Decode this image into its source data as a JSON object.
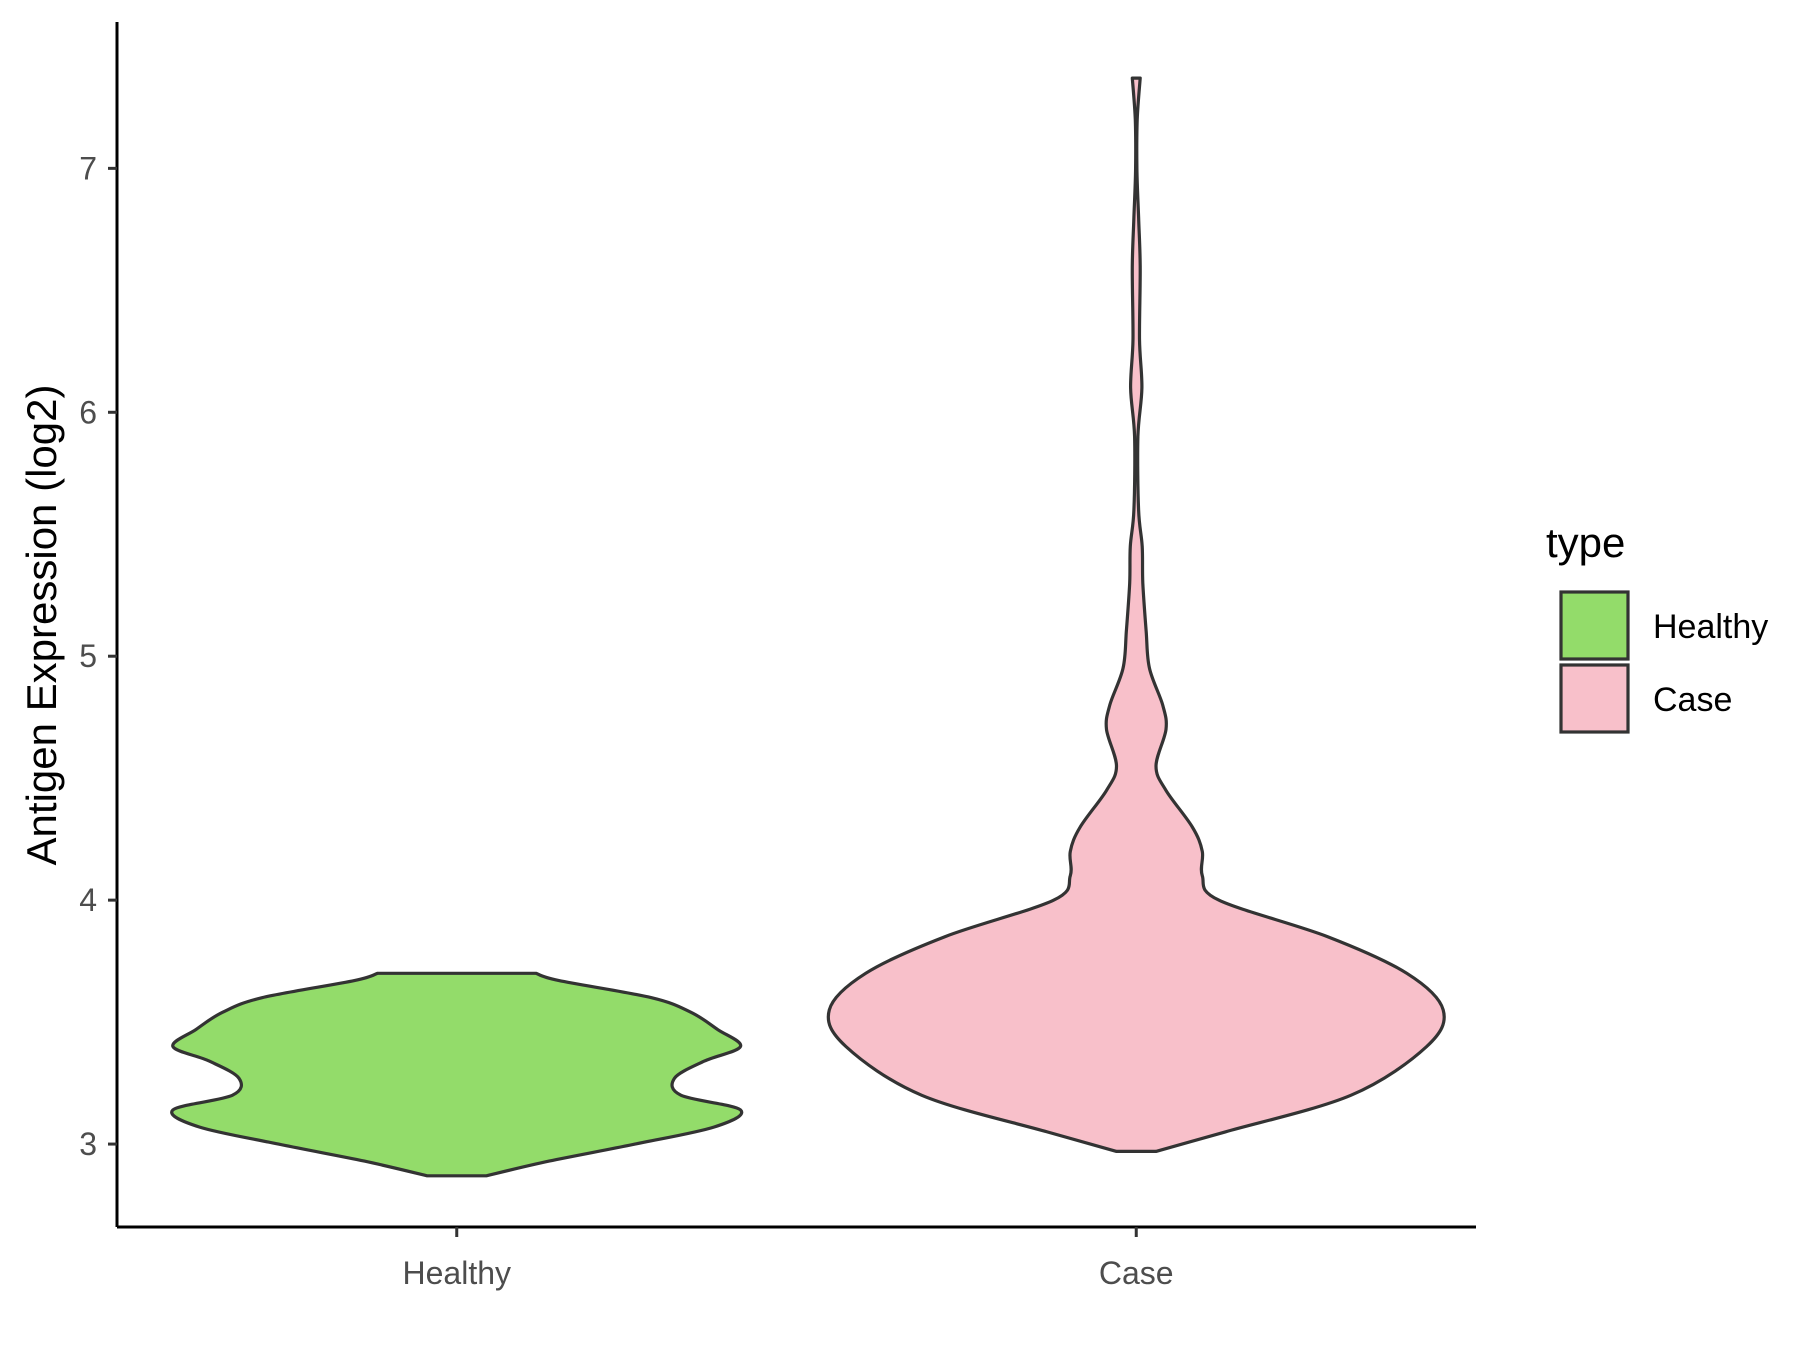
{
  "chart_data": {
    "type": "violin",
    "xlabel": "",
    "ylabel": "Antigen Expression (log2)",
    "categories": [
      "Healthy",
      "Case"
    ],
    "ylim": [
      2.66,
      7.6
    ],
    "yticks": [
      3,
      4,
      5,
      6,
      7
    ],
    "grid": false,
    "legend": {
      "title": "type",
      "position": "right",
      "entries": [
        {
          "label": "Healthy",
          "color": "#93dc6a"
        },
        {
          "label": "Case",
          "color": "#f8c0ca"
        }
      ]
    },
    "series": [
      {
        "name": "Healthy",
        "color": "#93dc6a",
        "min": 2.87,
        "max": 3.7,
        "density": [
          [
            2.87,
            0.09
          ],
          [
            2.93,
            0.28
          ],
          [
            3.0,
            0.54
          ],
          [
            3.07,
            0.78
          ],
          [
            3.14,
            0.86
          ],
          [
            3.2,
            0.68
          ],
          [
            3.27,
            0.66
          ],
          [
            3.34,
            0.75
          ],
          [
            3.4,
            0.86
          ],
          [
            3.47,
            0.79
          ],
          [
            3.54,
            0.71
          ],
          [
            3.6,
            0.59
          ],
          [
            3.67,
            0.31
          ],
          [
            3.7,
            0.24
          ]
        ]
      },
      {
        "name": "Case",
        "color": "#f8c0ca",
        "min": 2.97,
        "max": 7.37,
        "density": [
          [
            2.97,
            0.06
          ],
          [
            3.05,
            0.27
          ],
          [
            3.2,
            0.65
          ],
          [
            3.4,
            0.88
          ],
          [
            3.55,
            0.93
          ],
          [
            3.7,
            0.82
          ],
          [
            3.85,
            0.58
          ],
          [
            4.0,
            0.25
          ],
          [
            4.1,
            0.2
          ],
          [
            4.2,
            0.2
          ],
          [
            4.3,
            0.17
          ],
          [
            4.45,
            0.09
          ],
          [
            4.55,
            0.06
          ],
          [
            4.7,
            0.09
          ],
          [
            4.8,
            0.08
          ],
          [
            4.95,
            0.04
          ],
          [
            5.1,
            0.03
          ],
          [
            5.3,
            0.02
          ],
          [
            5.45,
            0.018
          ],
          [
            5.6,
            0.007
          ],
          [
            5.9,
            0.005
          ],
          [
            6.1,
            0.017
          ],
          [
            6.3,
            0.01
          ],
          [
            6.6,
            0.012
          ],
          [
            6.8,
            0.007
          ],
          [
            7.0,
            0.002
          ],
          [
            7.2,
            0.003
          ],
          [
            7.37,
            0.012
          ]
        ]
      }
    ]
  }
}
